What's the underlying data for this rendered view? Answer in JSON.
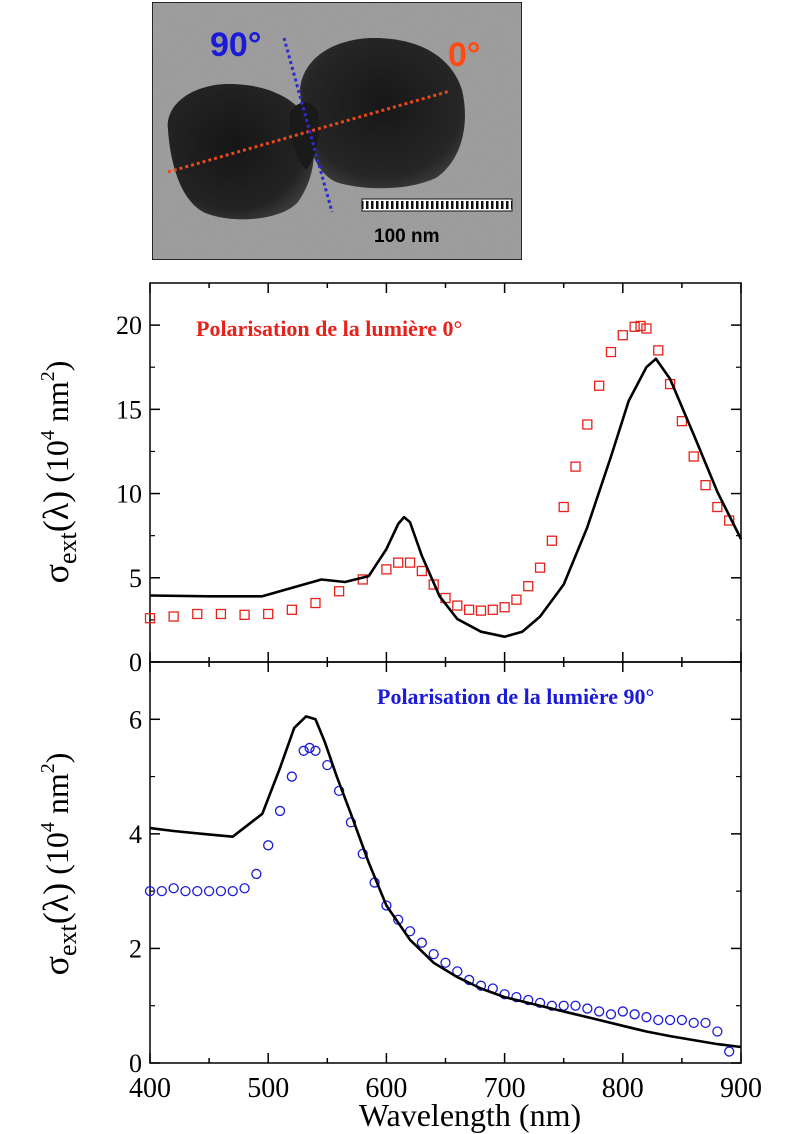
{
  "tem_image": {
    "label_90": "90°",
    "label_0": "0°",
    "scale_bar_label": "100 nm",
    "label_90_color": "#1b1bd8",
    "label_0_color": "#ff4a12",
    "axis_90_color": "#2b2bd0",
    "axis_0_color": "#e8481c"
  },
  "chart_data": [
    {
      "type": "line",
      "panel": "top",
      "annotation": "Polarisation de la lumière 0°",
      "annotation_color": "#e8211b",
      "ylabel_symbol": "σ",
      "ylabel_subscript": "ext",
      "ylabel_arg": "(λ)",
      "yunit_prefix": "(10",
      "yunit_exp": "4",
      "yunit_mid": " nm",
      "yunit_exp2": "2",
      "yunit_suffix": ")",
      "xlim": [
        400,
        900
      ],
      "ylim": [
        0,
        22.5
      ],
      "yticks": [
        0,
        5,
        10,
        15,
        20
      ],
      "yticklabels": [
        "0",
        "5",
        "10",
        "15",
        "20"
      ],
      "series": [
        {
          "style": "squares",
          "color": "#e8211b",
          "x": [
            400,
            420,
            440,
            460,
            480,
            500,
            520,
            540,
            560,
            580,
            600,
            610,
            620,
            630,
            640,
            650,
            660,
            670,
            680,
            690,
            700,
            710,
            720,
            730,
            740,
            750,
            760,
            770,
            780,
            790,
            800,
            810,
            815,
            820,
            830,
            840,
            850,
            860,
            870,
            880,
            890
          ],
          "y": [
            2.6,
            2.7,
            2.85,
            2.85,
            2.8,
            2.85,
            3.1,
            3.5,
            4.2,
            4.9,
            5.5,
            5.9,
            5.9,
            5.4,
            4.6,
            3.8,
            3.35,
            3.1,
            3.05,
            3.1,
            3.25,
            3.7,
            4.5,
            5.6,
            7.2,
            9.2,
            11.6,
            14.1,
            16.4,
            18.4,
            19.4,
            19.9,
            19.95,
            19.8,
            18.5,
            16.5,
            14.3,
            12.2,
            10.5,
            9.2,
            8.4
          ]
        },
        {
          "style": "line",
          "color": "#000000",
          "x": [
            400,
            450,
            495,
            520,
            545,
            565,
            585,
            600,
            610,
            615,
            620,
            630,
            645,
            660,
            680,
            700,
            715,
            730,
            750,
            770,
            790,
            805,
            820,
            828,
            840,
            860,
            880,
            900
          ],
          "y": [
            3.95,
            3.9,
            3.9,
            4.4,
            4.9,
            4.75,
            5.1,
            6.7,
            8.2,
            8.6,
            8.3,
            6.3,
            3.9,
            2.55,
            1.8,
            1.5,
            1.8,
            2.7,
            4.6,
            8.0,
            12.2,
            15.5,
            17.5,
            18.0,
            16.8,
            13.5,
            10.1,
            7.3
          ]
        }
      ]
    },
    {
      "type": "line",
      "panel": "bottom",
      "annotation": "Polarisation de la lumière 90°",
      "annotation_color": "#1b1bd8",
      "ylabel_symbol": "σ",
      "ylabel_subscript": "ext",
      "ylabel_arg": "(λ)",
      "yunit_prefix": "(10",
      "yunit_exp": "4",
      "yunit_mid": " nm",
      "yunit_exp2": "2",
      "yunit_suffix": ")",
      "xlabel": "Wavelength (nm)",
      "xlim": [
        400,
        900
      ],
      "ylim": [
        0,
        7
      ],
      "yticks": [
        0,
        2,
        4,
        6
      ],
      "yticklabels": [
        "0",
        "2",
        "4",
        "6"
      ],
      "xticks": [
        400,
        500,
        600,
        700,
        800,
        900
      ],
      "xticklabels": [
        "400",
        "500",
        "600",
        "700",
        "800",
        "900"
      ],
      "series": [
        {
          "style": "circles",
          "color": "#1b1bd8",
          "x": [
            400,
            410,
            420,
            430,
            440,
            450,
            460,
            470,
            480,
            490,
            500,
            510,
            520,
            530,
            535,
            540,
            550,
            560,
            570,
            580,
            590,
            600,
            610,
            620,
            630,
            640,
            650,
            660,
            670,
            680,
            690,
            700,
            710,
            720,
            730,
            740,
            750,
            760,
            770,
            780,
            790,
            800,
            810,
            820,
            830,
            840,
            850,
            860,
            870,
            880,
            890
          ],
          "y": [
            3.0,
            3.0,
            3.05,
            3.0,
            3.0,
            3.0,
            3.0,
            3.0,
            3.05,
            3.3,
            3.8,
            4.4,
            5.0,
            5.45,
            5.5,
            5.45,
            5.2,
            4.75,
            4.2,
            3.65,
            3.15,
            2.75,
            2.5,
            2.3,
            2.1,
            1.9,
            1.75,
            1.6,
            1.45,
            1.35,
            1.3,
            1.2,
            1.15,
            1.1,
            1.05,
            1.0,
            1.0,
            1.0,
            0.95,
            0.9,
            0.85,
            0.9,
            0.85,
            0.8,
            0.75,
            0.75,
            0.75,
            0.7,
            0.7,
            0.55,
            0.2
          ]
        },
        {
          "style": "line",
          "color": "#000000",
          "x": [
            400,
            420,
            445,
            470,
            495,
            510,
            522,
            532,
            540,
            548,
            558,
            570,
            585,
            600,
            620,
            640,
            660,
            680,
            700,
            720,
            740,
            760,
            780,
            800,
            820,
            840,
            860,
            880,
            900
          ],
          "y": [
            4.1,
            4.05,
            4.0,
            3.95,
            4.35,
            5.15,
            5.85,
            6.05,
            6.0,
            5.6,
            5.0,
            4.35,
            3.5,
            2.75,
            2.15,
            1.75,
            1.5,
            1.3,
            1.15,
            1.05,
            0.95,
            0.85,
            0.75,
            0.65,
            0.55,
            0.47,
            0.4,
            0.33,
            0.28
          ]
        }
      ]
    }
  ]
}
